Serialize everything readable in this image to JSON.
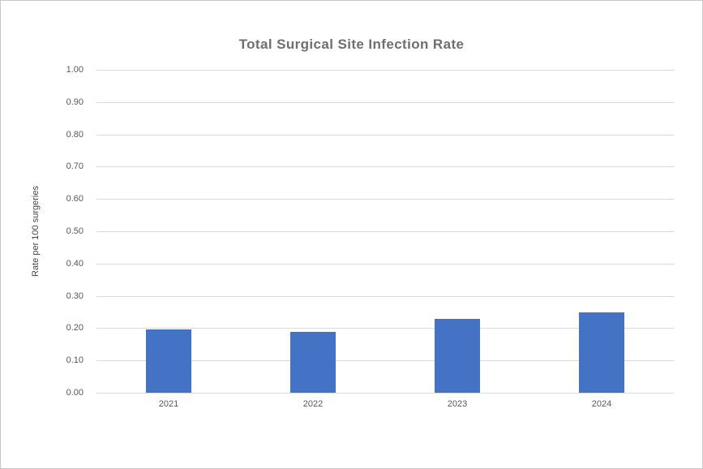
{
  "chart_data": {
    "type": "bar",
    "title": "Total Surgical Site Infection Rate",
    "xlabel": "",
    "ylabel": "Rate per 100 surgeries",
    "categories": [
      "2021",
      "2022",
      "2023",
      "2024"
    ],
    "values": [
      0.197,
      0.188,
      0.228,
      0.25
    ],
    "ylim": [
      0.0,
      1.0
    ],
    "ytick_step": 0.1,
    "yticks": [
      "1.00",
      "0.90",
      "0.80",
      "0.70",
      "0.60",
      "0.50",
      "0.40",
      "0.30",
      "0.20",
      "0.10",
      "0.00"
    ],
    "grid": true,
    "legend": false,
    "colors": {
      "bar": "#4472C4",
      "gridline": "#d9d9d9",
      "tick_label": "#595959",
      "axis_title": "#454545",
      "title": "#6f6f6f",
      "background": "#ffffff",
      "border": "#c9c9c9"
    }
  }
}
